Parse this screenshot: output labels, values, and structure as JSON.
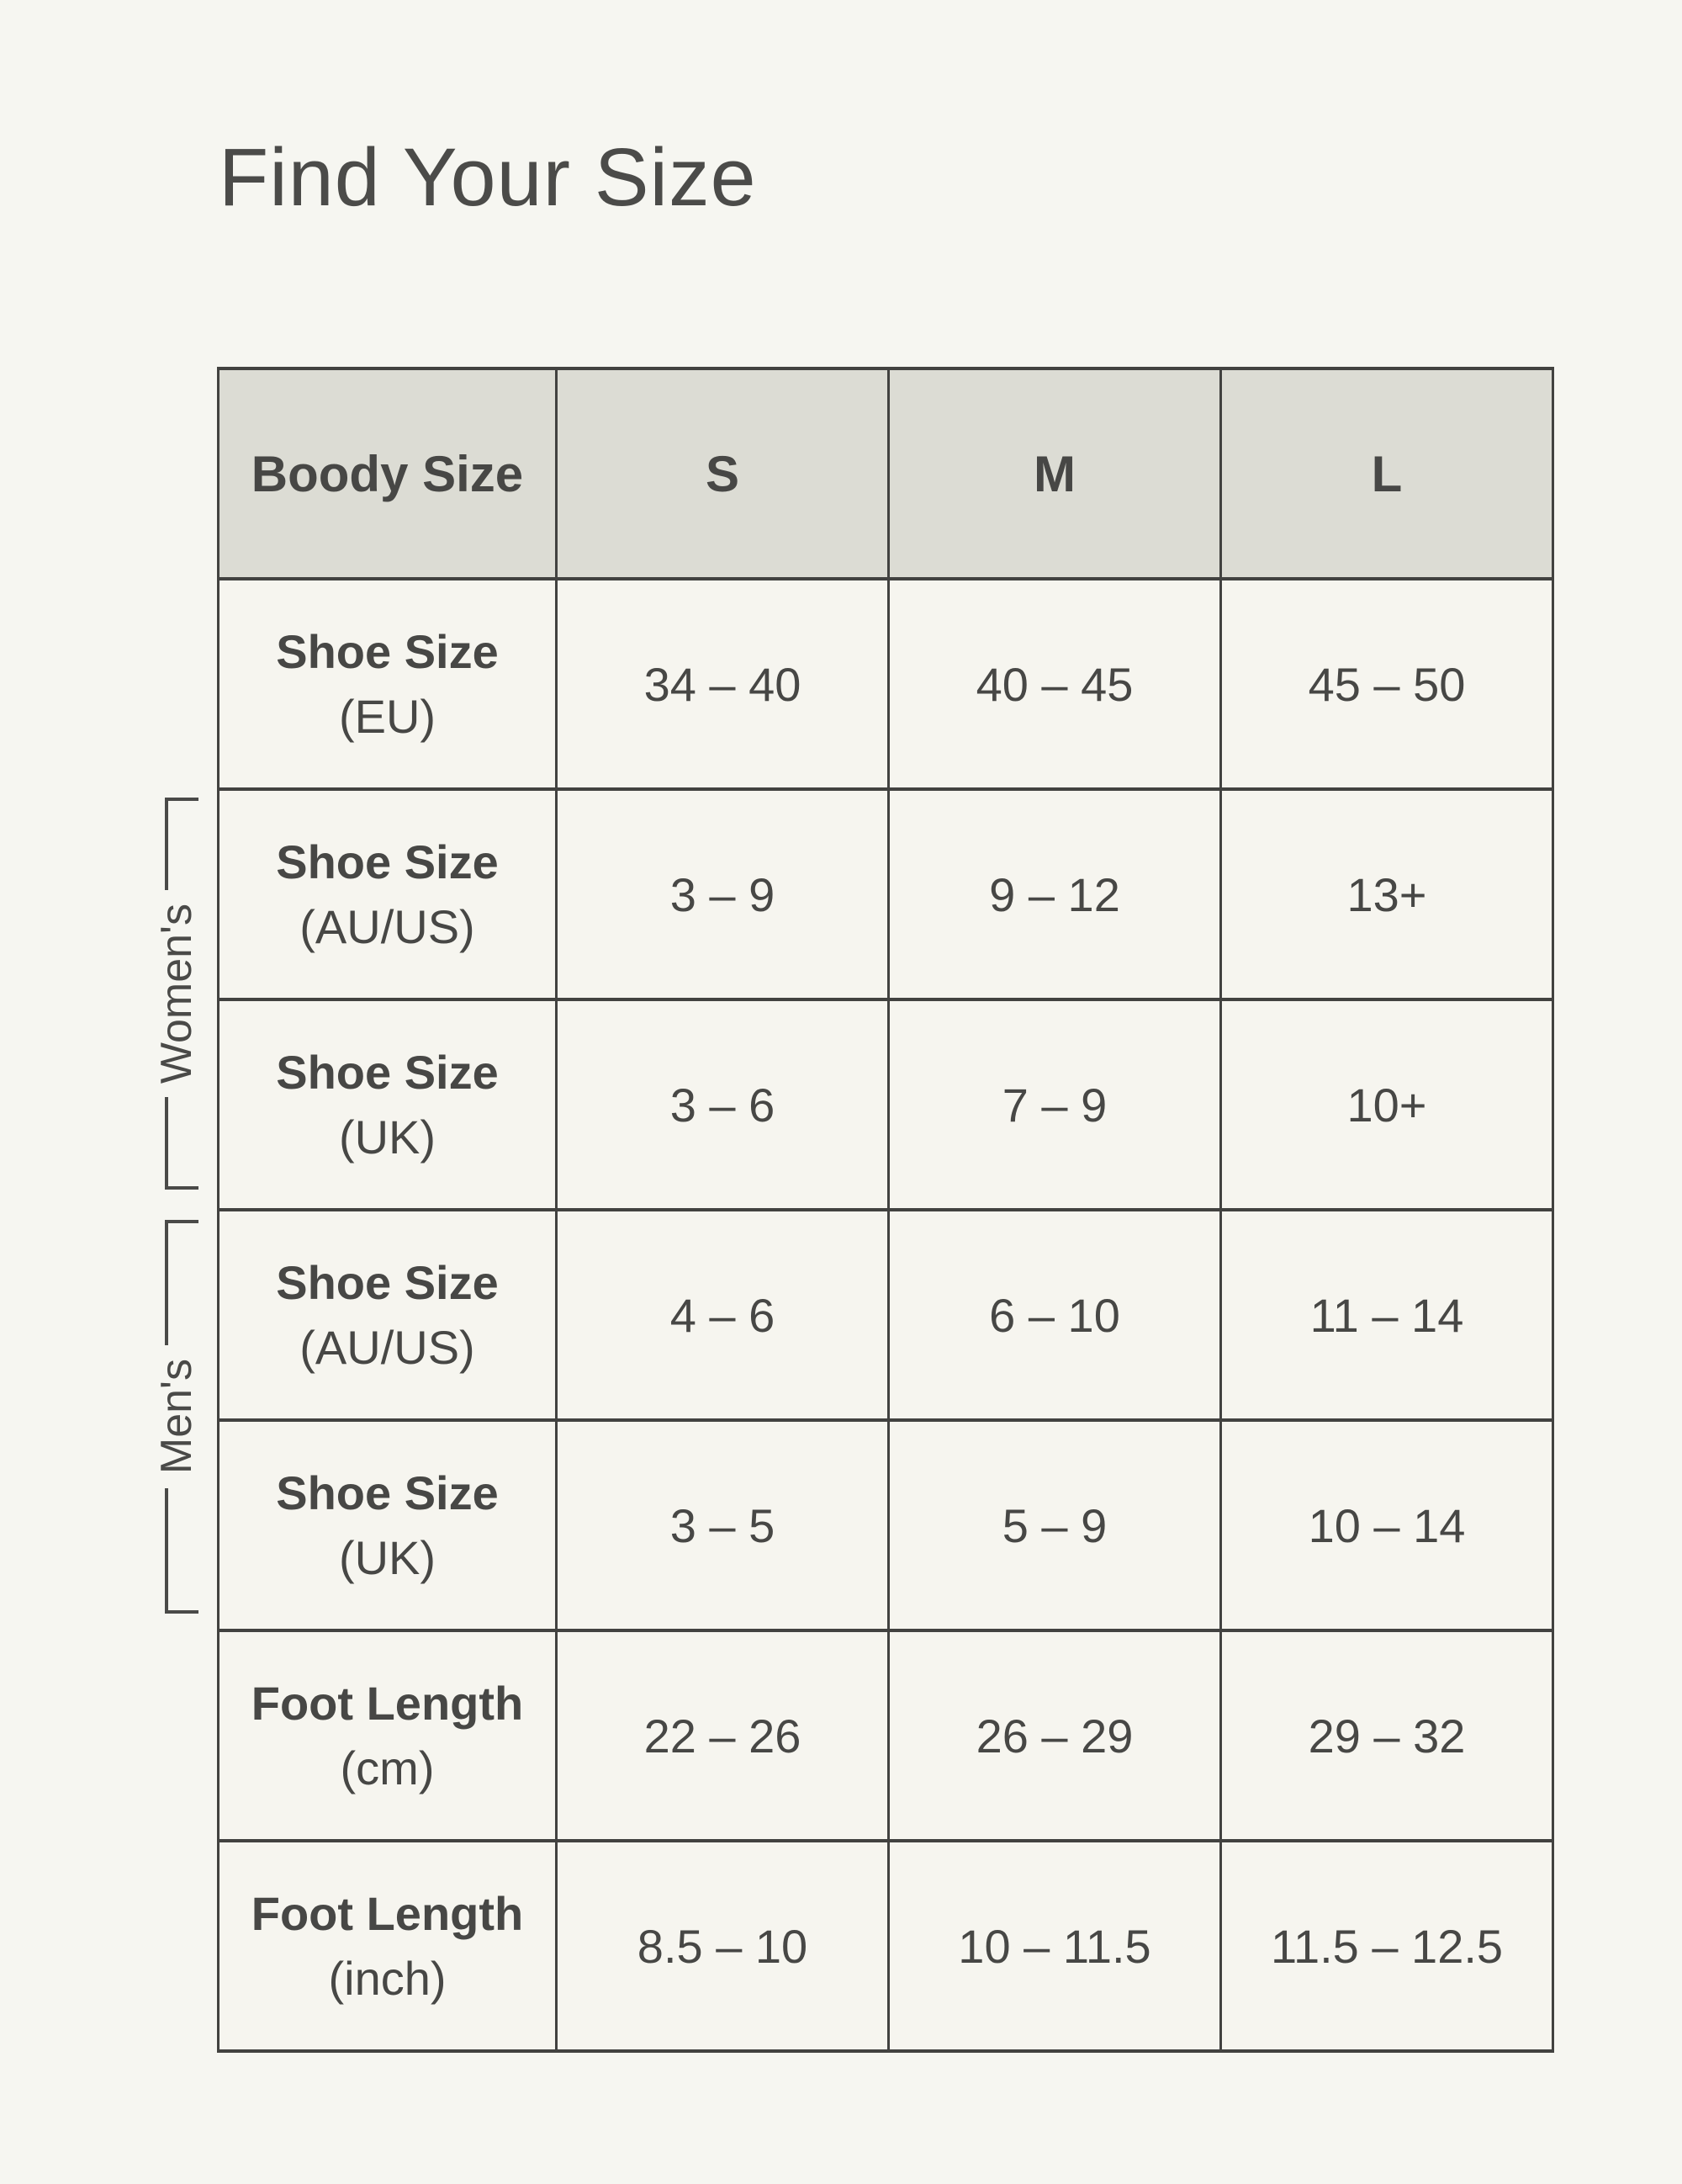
{
  "title": "Find Your Size",
  "colors": {
    "page-bg": "#f6f6f1",
    "cell-bg": "#f6f5ef",
    "header-bg": "#dcdcd4",
    "border": "#424240",
    "text": "#474745"
  },
  "groups": {
    "womens": "Women's",
    "mens": "Men's"
  },
  "table": {
    "header": [
      "Boody Size",
      "S",
      "M",
      "L"
    ],
    "rows": [
      {
        "label": "Shoe Size",
        "sublabel": "(EU)",
        "group": "",
        "values": [
          "34 – 40",
          "40 – 45",
          "45 – 50"
        ]
      },
      {
        "label": "Shoe Size",
        "sublabel": "(AU/US)",
        "group": "womens",
        "values": [
          "3 – 9",
          "9 – 12",
          "13+"
        ]
      },
      {
        "label": "Shoe Size",
        "sublabel": "(UK)",
        "group": "womens",
        "values": [
          "3 – 6",
          "7 – 9",
          "10+"
        ]
      },
      {
        "label": "Shoe Size",
        "sublabel": "(AU/US)",
        "group": "mens",
        "values": [
          "4 – 6",
          "6 – 10",
          "11 – 14"
        ]
      },
      {
        "label": "Shoe Size",
        "sublabel": "(UK)",
        "group": "mens",
        "values": [
          "3 – 5",
          "5 – 9",
          "10 – 14"
        ]
      },
      {
        "label": "Foot Length",
        "sublabel": "(cm)",
        "group": "",
        "values": [
          "22 – 26",
          "26 – 29",
          "29 – 32"
        ]
      },
      {
        "label": "Foot Length",
        "sublabel": "(inch)",
        "group": "",
        "values": [
          "8.5 – 10",
          "10 – 11.5",
          "11.5 – 12.5"
        ]
      }
    ]
  }
}
